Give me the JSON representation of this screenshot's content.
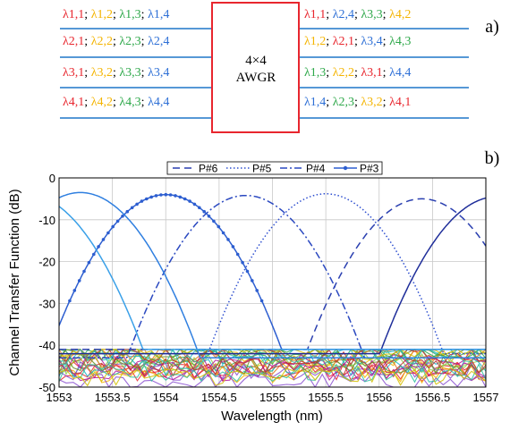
{
  "panel_a": {
    "label": "a)",
    "box_label_line1": "4×4",
    "box_label_line2": "AWGR",
    "colors": {
      "l1": "#e8262e",
      "l2": "#f4b400",
      "l3": "#2ea84a",
      "l4": "#2d6fd6",
      "box": "#e8262e"
    },
    "inputs": [
      [
        {
          "t": "λ1,1",
          "c": "l1"
        },
        {
          "t": "; ",
          "c": "sep"
        },
        {
          "t": "λ1,2",
          "c": "l2"
        },
        {
          "t": "; ",
          "c": "sep"
        },
        {
          "t": "λ1,3",
          "c": "l3"
        },
        {
          "t": "; ",
          "c": "sep"
        },
        {
          "t": "λ1,4",
          "c": "l4"
        }
      ],
      [
        {
          "t": "λ2,1",
          "c": "l1"
        },
        {
          "t": "; ",
          "c": "sep"
        },
        {
          "t": "λ2,2",
          "c": "l2"
        },
        {
          "t": "; ",
          "c": "sep"
        },
        {
          "t": "λ2,3",
          "c": "l3"
        },
        {
          "t": "; ",
          "c": "sep"
        },
        {
          "t": "λ2,4",
          "c": "l4"
        }
      ],
      [
        {
          "t": "λ3,1",
          "c": "l1"
        },
        {
          "t": "; ",
          "c": "sep"
        },
        {
          "t": "λ3,2",
          "c": "l2"
        },
        {
          "t": "; ",
          "c": "sep"
        },
        {
          "t": "λ3,3",
          "c": "l3"
        },
        {
          "t": "; ",
          "c": "sep"
        },
        {
          "t": "λ3,4",
          "c": "l4"
        }
      ],
      [
        {
          "t": "λ4,1",
          "c": "l1"
        },
        {
          "t": "; ",
          "c": "sep"
        },
        {
          "t": "λ4,2",
          "c": "l2"
        },
        {
          "t": "; ",
          "c": "sep"
        },
        {
          "t": "λ4,3",
          "c": "l3"
        },
        {
          "t": "; ",
          "c": "sep"
        },
        {
          "t": "λ4,4",
          "c": "l4"
        }
      ]
    ],
    "outputs": [
      [
        {
          "t": "λ1,1",
          "c": "l1"
        },
        {
          "t": "; ",
          "c": "sep"
        },
        {
          "t": "λ2,4",
          "c": "l4"
        },
        {
          "t": "; ",
          "c": "sep"
        },
        {
          "t": "λ3,3",
          "c": "l3"
        },
        {
          "t": "; ",
          "c": "sep"
        },
        {
          "t": "λ4,2",
          "c": "l2"
        }
      ],
      [
        {
          "t": "λ1,2",
          "c": "l2"
        },
        {
          "t": "; ",
          "c": "sep"
        },
        {
          "t": "λ2,1",
          "c": "l1"
        },
        {
          "t": "; ",
          "c": "sep"
        },
        {
          "t": "λ3,4",
          "c": "l4"
        },
        {
          "t": "; ",
          "c": "sep"
        },
        {
          "t": "λ4,3",
          "c": "l3"
        }
      ],
      [
        {
          "t": "λ1,3",
          "c": "l3"
        },
        {
          "t": "; ",
          "c": "sep"
        },
        {
          "t": "λ2,2",
          "c": "l2"
        },
        {
          "t": "; ",
          "c": "sep"
        },
        {
          "t": "λ3,1",
          "c": "l1"
        },
        {
          "t": "; ",
          "c": "sep"
        },
        {
          "t": "λ4,4",
          "c": "l4"
        }
      ],
      [
        {
          "t": "λ1,4",
          "c": "l4"
        },
        {
          "t": "; ",
          "c": "sep"
        },
        {
          "t": "λ2,3",
          "c": "l3"
        },
        {
          "t": "; ",
          "c": "sep"
        },
        {
          "t": "λ3,2",
          "c": "l2"
        },
        {
          "t": "; ",
          "c": "sep"
        },
        {
          "t": "λ4,1",
          "c": "l1"
        }
      ]
    ]
  },
  "chart_data": {
    "type": "line",
    "panel_label": "b)",
    "xlabel": "Wavelength (nm)",
    "ylabel": "Channel Transfer Function (dB)",
    "xlim": [
      1553,
      1557
    ],
    "ylim": [
      -50,
      0
    ],
    "x_ticks": [
      "1553",
      "1553.5",
      "1554",
      "1554.5",
      "1555",
      "1555.5",
      "1556",
      "1556.5",
      "1557"
    ],
    "y_ticks": [
      "0",
      "-10",
      "-20",
      "-30",
      "-40",
      "-50"
    ],
    "grid": true,
    "legend_position": "top",
    "series": [
      {
        "name": "P#6",
        "style": "dashed",
        "color": "#2a3fb0",
        "peak_nm": 1556.4,
        "peak_db": -5,
        "fwhm_nm": 0.62
      },
      {
        "name": "P#5",
        "style": "dotted",
        "color": "#2f50d0",
        "peak_nm": 1555.5,
        "peak_db": -3.8,
        "fwhm_nm": 0.62
      },
      {
        "name": "P#4",
        "style": "dash-dot",
        "color": "#2a48c0",
        "peak_nm": 1554.75,
        "peak_db": -4.2,
        "fwhm_nm": 0.62
      },
      {
        "name": "P#3",
        "style": "solid-dot",
        "color": "#2d5ed0",
        "peak_nm": 1554.0,
        "peak_db": -4.0,
        "fwhm_nm": 0.62
      },
      {
        "name": "",
        "style": "solid",
        "color": "#1f2e9a",
        "peak_nm": 1557.1,
        "peak_db": -4.5,
        "fwhm_nm": 0.62
      },
      {
        "name": "",
        "style": "solid",
        "color": "#2f7fe0",
        "peak_nm": 1553.2,
        "peak_db": -3.5,
        "fwhm_nm": 0.62
      },
      {
        "name": "",
        "style": "solid",
        "color": "#3aa0e8",
        "peak_nm": 1552.7,
        "peak_db": -4.0,
        "fwhm_nm": 0.62
      }
    ],
    "noise_floor_db": [
      -41,
      -49
    ],
    "noise_colors": [
      "#e8262e",
      "#f4b400",
      "#2ea84a",
      "#8bd04a",
      "#19b3c7",
      "#8a4fd0",
      "#e07a1e",
      "#b5179e",
      "#6b8e23",
      "#c03030",
      "#30c0a0",
      "#d4c000"
    ]
  }
}
